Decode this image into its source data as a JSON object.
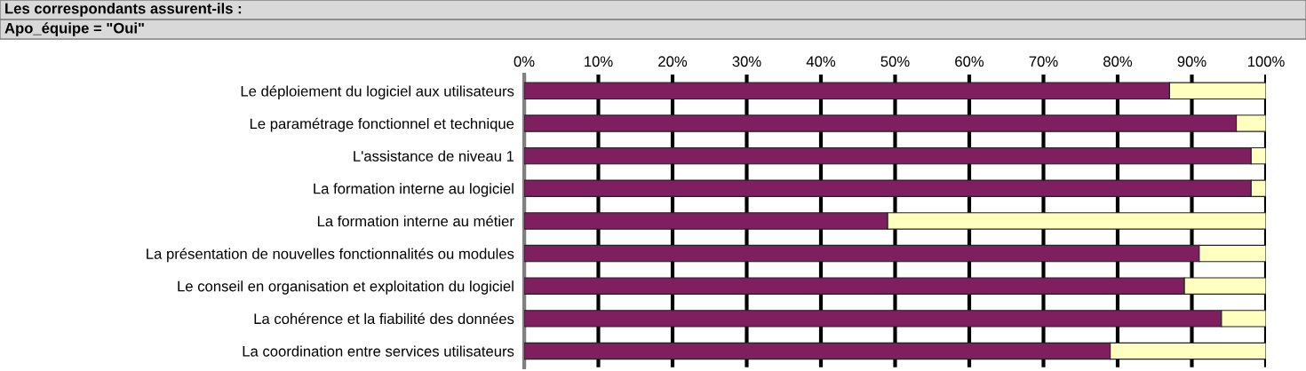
{
  "chart_data": {
    "type": "bar",
    "orientation": "horizontal",
    "stacked": true,
    "title": "Les correspondants assurent-ils :",
    "subtitle": "Apo_équipe = \"Oui\"",
    "categories": [
      "Le déploiement du logiciel aux utilisateurs",
      "Le paramétrage fonctionnel et technique",
      "L'assistance de niveau 1",
      "La formation interne au logiciel",
      "La formation interne au métier",
      "La présentation de nouvelles fonctionnalités ou modules",
      "Le conseil en organisation et exploitation du logiciel",
      "La cohérence et la fiabilité des données",
      "La coordination entre services utilisateurs"
    ],
    "series": [
      {
        "color": "#7f1f5f",
        "values": [
          87,
          96,
          98,
          98,
          49,
          91,
          89,
          94,
          79
        ]
      },
      {
        "color": "#ffffc0",
        "values": [
          13,
          4,
          2,
          2,
          51,
          9,
          11,
          6,
          21
        ]
      }
    ],
    "xlim": [
      0,
      100
    ],
    "xticks": [
      {
        "value": 0,
        "label": "0%"
      },
      {
        "value": 10,
        "label": "10%"
      },
      {
        "value": 20,
        "label": "20%"
      },
      {
        "value": 30,
        "label": "30%"
      },
      {
        "value": 40,
        "label": "40%"
      },
      {
        "value": 50,
        "label": "50%"
      },
      {
        "value": 60,
        "label": "60%"
      },
      {
        "value": 70,
        "label": "70%"
      },
      {
        "value": 80,
        "label": "80%"
      },
      {
        "value": 90,
        "label": "90%"
      },
      {
        "value": 100,
        "label": "100%"
      }
    ],
    "grid": "x",
    "legend": false
  }
}
